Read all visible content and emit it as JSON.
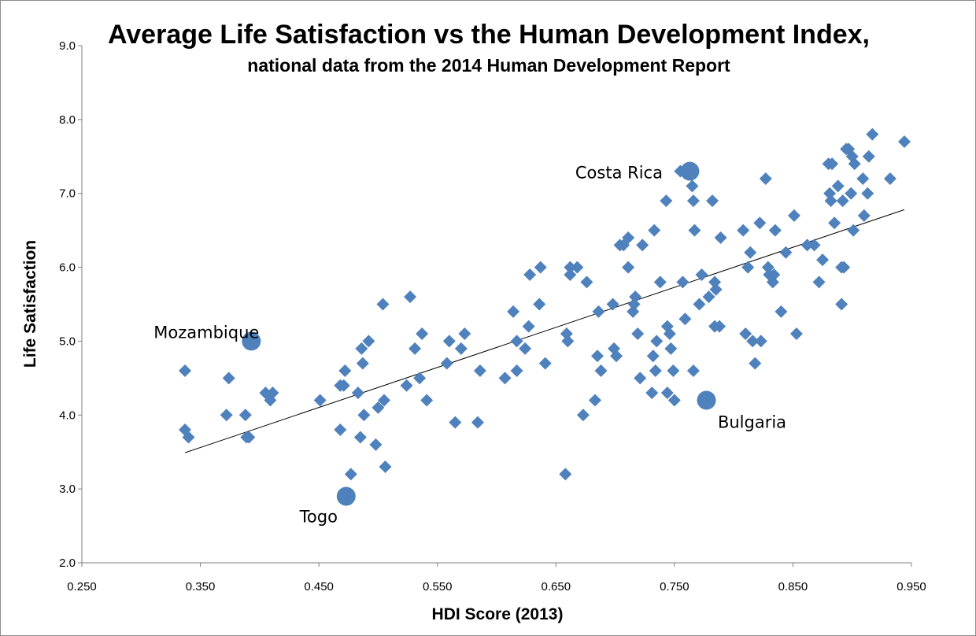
{
  "chart_data": {
    "type": "scatter",
    "title": "Average Life Satisfaction vs the Human Development Index,",
    "subtitle": "national data from the 2014 Human Development Report",
    "xlabel": "HDI Score (2013)",
    "ylabel": "Life Satisfaction",
    "xlim": [
      0.25,
      0.95
    ],
    "ylim": [
      2.0,
      9.0
    ],
    "x_ticks": [
      "0.250",
      "0.350",
      "0.450",
      "0.550",
      "0.650",
      "0.750",
      "0.850",
      "0.950"
    ],
    "y_ticks": [
      "2.0",
      "3.0",
      "4.0",
      "5.0",
      "6.0",
      "7.0",
      "8.0",
      "9.0"
    ],
    "grid": false,
    "legend": "none",
    "marker_color": "#4f81bd",
    "trendline_color": "#000000",
    "trendline": {
      "x": [
        0.337,
        0.944
      ],
      "y": [
        3.49,
        6.78
      ]
    },
    "highlighted": [
      {
        "label": "Mozambique",
        "x": 0.393,
        "y": 5.0
      },
      {
        "label": "Togo",
        "x": 0.473,
        "y": 2.9
      },
      {
        "label": "Costa Rica",
        "x": 0.763,
        "y": 7.3
      },
      {
        "label": "Bulgaria",
        "x": 0.777,
        "y": 4.2
      }
    ],
    "points": [
      [
        0.337,
        4.6
      ],
      [
        0.337,
        3.8
      ],
      [
        0.34,
        3.7
      ],
      [
        0.372,
        4.0
      ],
      [
        0.374,
        4.5
      ],
      [
        0.388,
        4.0
      ],
      [
        0.389,
        3.7
      ],
      [
        0.391,
        3.7
      ],
      [
        0.405,
        4.3
      ],
      [
        0.409,
        4.2
      ],
      [
        0.411,
        4.3
      ],
      [
        0.451,
        4.2
      ],
      [
        0.468,
        4.4
      ],
      [
        0.468,
        3.8
      ],
      [
        0.471,
        4.4
      ],
      [
        0.472,
        4.6
      ],
      [
        0.477,
        3.2
      ],
      [
        0.483,
        4.3
      ],
      [
        0.485,
        3.7
      ],
      [
        0.486,
        4.9
      ],
      [
        0.487,
        4.7
      ],
      [
        0.488,
        4.0
      ],
      [
        0.492,
        5.0
      ],
      [
        0.498,
        3.6
      ],
      [
        0.5,
        4.1
      ],
      [
        0.504,
        5.5
      ],
      [
        0.505,
        4.2
      ],
      [
        0.506,
        3.3
      ],
      [
        0.524,
        4.4
      ],
      [
        0.527,
        5.6
      ],
      [
        0.531,
        4.9
      ],
      [
        0.535,
        4.5
      ],
      [
        0.537,
        5.1
      ],
      [
        0.541,
        4.2
      ],
      [
        0.558,
        4.7
      ],
      [
        0.56,
        5.0
      ],
      [
        0.565,
        3.9
      ],
      [
        0.57,
        4.9
      ],
      [
        0.573,
        5.1
      ],
      [
        0.584,
        3.9
      ],
      [
        0.586,
        4.6
      ],
      [
        0.607,
        4.5
      ],
      [
        0.614,
        5.4
      ],
      [
        0.617,
        4.6
      ],
      [
        0.617,
        5.0
      ],
      [
        0.624,
        4.9
      ],
      [
        0.627,
        5.2
      ],
      [
        0.628,
        5.9
      ],
      [
        0.636,
        5.5
      ],
      [
        0.637,
        6.0
      ],
      [
        0.641,
        4.7
      ],
      [
        0.658,
        3.2
      ],
      [
        0.659,
        5.1
      ],
      [
        0.66,
        5.0
      ],
      [
        0.662,
        6.0
      ],
      [
        0.662,
        5.9
      ],
      [
        0.668,
        6.0
      ],
      [
        0.673,
        4.0
      ],
      [
        0.676,
        5.8
      ],
      [
        0.683,
        4.2
      ],
      [
        0.685,
        4.8
      ],
      [
        0.686,
        5.4
      ],
      [
        0.688,
        4.6
      ],
      [
        0.698,
        5.5
      ],
      [
        0.699,
        4.9
      ],
      [
        0.701,
        4.8
      ],
      [
        0.704,
        6.3
      ],
      [
        0.707,
        6.3
      ],
      [
        0.711,
        6.4
      ],
      [
        0.711,
        6.0
      ],
      [
        0.715,
        5.4
      ],
      [
        0.716,
        5.5
      ],
      [
        0.717,
        5.6
      ],
      [
        0.719,
        5.1
      ],
      [
        0.721,
        4.5
      ],
      [
        0.723,
        6.3
      ],
      [
        0.731,
        4.3
      ],
      [
        0.732,
        4.8
      ],
      [
        0.733,
        6.5
      ],
      [
        0.734,
        4.6
      ],
      [
        0.735,
        5.0
      ],
      [
        0.738,
        5.8
      ],
      [
        0.743,
        6.9
      ],
      [
        0.744,
        4.3
      ],
      [
        0.744,
        5.2
      ],
      [
        0.746,
        5.1
      ],
      [
        0.747,
        4.9
      ],
      [
        0.749,
        4.6
      ],
      [
        0.75,
        4.2
      ],
      [
        0.755,
        7.3
      ],
      [
        0.757,
        5.8
      ],
      [
        0.759,
        5.3
      ],
      [
        0.765,
        7.1
      ],
      [
        0.766,
        6.9
      ],
      [
        0.766,
        4.6
      ],
      [
        0.767,
        6.5
      ],
      [
        0.771,
        5.5
      ],
      [
        0.773,
        5.9
      ],
      [
        0.779,
        5.6
      ],
      [
        0.782,
        6.9
      ],
      [
        0.784,
        5.8
      ],
      [
        0.784,
        5.2
      ],
      [
        0.785,
        5.7
      ],
      [
        0.788,
        5.2
      ],
      [
        0.789,
        6.4
      ],
      [
        0.808,
        6.5
      ],
      [
        0.81,
        5.1
      ],
      [
        0.812,
        6.0
      ],
      [
        0.814,
        6.2
      ],
      [
        0.816,
        5.0
      ],
      [
        0.818,
        4.7
      ],
      [
        0.822,
        6.6
      ],
      [
        0.823,
        5.0
      ],
      [
        0.827,
        7.2
      ],
      [
        0.829,
        6.0
      ],
      [
        0.83,
        5.9
      ],
      [
        0.833,
        5.8
      ],
      [
        0.834,
        5.9
      ],
      [
        0.835,
        6.5
      ],
      [
        0.84,
        5.4
      ],
      [
        0.844,
        6.2
      ],
      [
        0.851,
        6.7
      ],
      [
        0.853,
        5.1
      ],
      [
        0.862,
        6.3
      ],
      [
        0.868,
        6.3
      ],
      [
        0.872,
        5.8
      ],
      [
        0.875,
        6.1
      ],
      [
        0.88,
        7.4
      ],
      [
        0.881,
        7.0
      ],
      [
        0.882,
        6.9
      ],
      [
        0.883,
        7.4
      ],
      [
        0.885,
        6.6
      ],
      [
        0.888,
        7.1
      ],
      [
        0.891,
        6.0
      ],
      [
        0.891,
        5.5
      ],
      [
        0.892,
        6.9
      ],
      [
        0.893,
        6.0
      ],
      [
        0.895,
        7.6
      ],
      [
        0.897,
        7.6
      ],
      [
        0.899,
        7.0
      ],
      [
        0.9,
        7.5
      ],
      [
        0.901,
        6.5
      ],
      [
        0.902,
        7.4
      ],
      [
        0.909,
        7.2
      ],
      [
        0.91,
        6.7
      ],
      [
        0.913,
        7.0
      ],
      [
        0.914,
        7.5
      ],
      [
        0.917,
        7.8
      ],
      [
        0.932,
        7.2
      ],
      [
        0.944,
        7.7
      ]
    ]
  }
}
